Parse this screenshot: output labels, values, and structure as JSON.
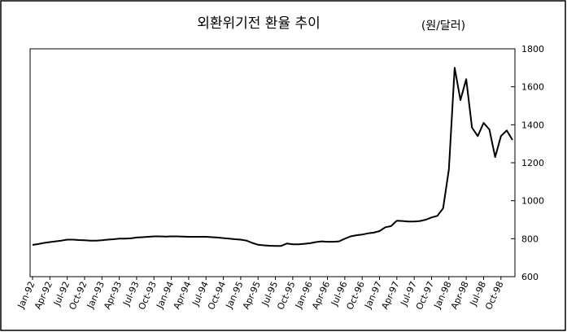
{
  "chart_data": {
    "type": "line",
    "title": "외환위기전 환율 추이",
    "unit": "(원/달러)",
    "categories": [
      "Jan-92",
      null,
      null,
      "Apr-92",
      null,
      null,
      "Jul-92",
      null,
      null,
      "Oct-92",
      null,
      null,
      "Jan-93",
      null,
      null,
      "Apr-93",
      null,
      null,
      "Jul-93",
      null,
      null,
      "Oct-93",
      null,
      null,
      "Jan-94",
      null,
      null,
      "Apr-94",
      null,
      null,
      "Jul-94",
      null,
      null,
      "Oct-94",
      null,
      null,
      "Jan-95",
      null,
      null,
      "Apr-95",
      null,
      null,
      "Jul-95",
      null,
      null,
      "Oct-95",
      null,
      null,
      "Jan-96",
      null,
      null,
      "Apr-96",
      null,
      null,
      "Jul-96",
      null,
      null,
      "Oct-96",
      null,
      null,
      "Jan-97",
      null,
      null,
      "Apr-97",
      null,
      null,
      "Jul-97",
      null,
      null,
      "Oct-97",
      null,
      null,
      "Jan-98",
      null,
      null,
      "Apr-98",
      null,
      null,
      "Jul-98",
      null,
      null,
      "Oct-98",
      null,
      null
    ],
    "values": [
      767,
      772,
      778,
      782,
      786,
      790,
      795,
      795,
      793,
      792,
      790,
      790,
      792,
      795,
      797,
      800,
      800,
      802,
      806,
      808,
      810,
      812,
      812,
      811,
      812,
      812,
      811,
      810,
      810,
      810,
      810,
      808,
      806,
      803,
      800,
      797,
      795,
      790,
      778,
      768,
      765,
      763,
      762,
      762,
      775,
      770,
      770,
      773,
      776,
      782,
      786,
      784,
      784,
      786,
      800,
      812,
      818,
      822,
      828,
      832,
      840,
      860,
      866,
      895,
      893,
      890,
      890,
      893,
      900,
      912,
      920,
      960,
      1165,
      1700,
      1530,
      1640,
      1385,
      1340,
      1410,
      1375,
      1230,
      1340,
      1370,
      1320
    ],
    "color": "#000000",
    "ylim": [
      600,
      1800
    ],
    "yticks": [
      600,
      800,
      1000,
      1200,
      1400,
      1600,
      1800
    ],
    "grid": false
  }
}
